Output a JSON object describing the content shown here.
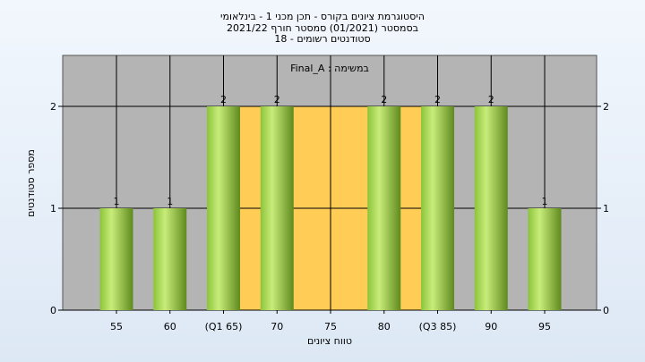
{
  "chart_data": {
    "type": "bar",
    "title_lines": [
      "היסטוגרמת ציונים בקורס - תכן מכני 1 - בינלאומי",
      "בסמסטר  (01/2021)  סמסטר חורף 2021/22",
      "סטודנטים רשומים - 18"
    ],
    "xlabel": "טווח ציונים",
    "ylabel": "מספר סטודנטים",
    "legend_text": "במשימה : Final_A",
    "categories": [
      "55",
      "60",
      "(Q1 65)",
      "70",
      "75",
      "80",
      "(Q3 85)",
      "90",
      "95"
    ],
    "values": [
      1,
      1,
      2,
      2,
      0,
      2,
      2,
      2,
      1
    ],
    "data_labels": [
      "1",
      "1",
      "2",
      "2",
      "",
      "2",
      "2",
      "2",
      "1"
    ],
    "yticks": [
      "0",
      "1",
      "2"
    ],
    "ylim": [
      0,
      2.45
    ],
    "interquartile_range": [
      "(Q1 65)",
      "(Q3 85)"
    ],
    "grid": true,
    "colors": {
      "plot_bg": "#b4b4b4",
      "iqr_fill": "#ffcc55",
      "bar_dark": "#5f8a1e",
      "bar_light": "#c8ec7a",
      "bar_mid": "#8cc43a"
    }
  }
}
